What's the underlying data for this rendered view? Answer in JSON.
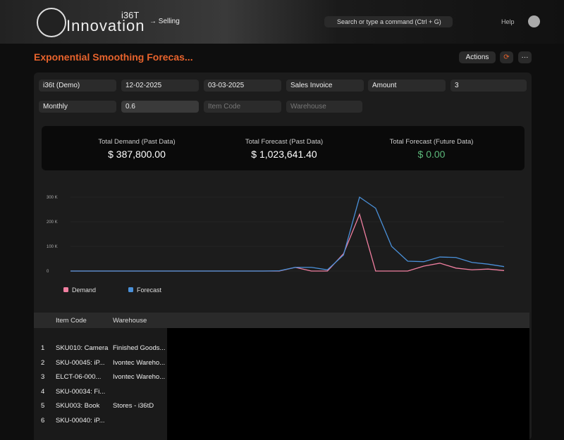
{
  "header": {
    "brand": "Innovation",
    "brand_mark": "i36T",
    "module": "Selling",
    "search": "Search or type a command (Ctrl + G)",
    "help": "Help"
  },
  "page": {
    "title": "Exponential Smoothing Forecas...",
    "actions": "Actions"
  },
  "filters": {
    "company": "i36t (Demo)",
    "from_date": "12-02-2025",
    "to_date": "03-03-2025",
    "document": "Sales Invoice",
    "based_on": "Amount",
    "periods": "3",
    "periodicity": "Monthly",
    "smoothing": "0.6",
    "item_code": "Item Code",
    "warehouse": "Warehouse"
  },
  "summary": [
    {
      "label": "Total Demand (Past Data)",
      "value": "$ 387,800.00"
    },
    {
      "label": "Total Forecast (Past Data)",
      "value": "$ 1,023,641.40"
    },
    {
      "label": "Total Forecast (Future Data)",
      "value": "$ 0.00"
    }
  ],
  "chart": {
    "type": "line",
    "categories": [
      null,
      null,
      null,
      null,
      null,
      null,
      null,
      null,
      null,
      null,
      null,
      null,
      null,
      null,
      null,
      null,
      null,
      null,
      null,
      null,
      null,
      null,
      null,
      null,
      null,
      null,
      null,
      null
    ],
    "series": [
      {
        "name": "Demand",
        "color": "#f07fa0",
        "values": [
          0,
          0,
          0,
          0,
          0,
          0,
          0,
          0,
          0,
          0,
          0,
          0,
          0,
          0,
          15000,
          0,
          0,
          70000,
          230000,
          0,
          0,
          0,
          20000,
          32000,
          12000,
          5000,
          8000,
          2000
        ]
      },
      {
        "name": "Forecast",
        "color": "#4a90d9",
        "values": [
          0,
          0,
          0,
          0,
          0,
          0,
          0,
          0,
          0,
          0,
          0,
          0,
          0,
          1000,
          15000,
          15000,
          5000,
          65000,
          300000,
          255000,
          100000,
          40000,
          38000,
          57000,
          55000,
          35000,
          28000,
          18000
        ]
      }
    ],
    "ylim": [
      0,
      300000
    ],
    "yticks": [
      0,
      {
        "value": 100000,
        "label": "100 K"
      },
      {
        "value": 200000,
        "label": "200 K"
      },
      {
        "value": 300000,
        "label": "300 K"
      }
    ],
    "grid": true
  },
  "table": {
    "columns": [
      "Item Code",
      "Warehouse"
    ],
    "rows": [
      [
        "1",
        "SKU010: Camera",
        "Finished Goods..."
      ],
      [
        "2",
        "SKU-00045: iP...",
        "Ivontec Wareho..."
      ],
      [
        "3",
        "ELCT-06-000...",
        "Ivontec Wareho..."
      ],
      [
        "4",
        "SKU-00034: Fi...",
        ""
      ],
      [
        "5",
        "SKU003: Book",
        "Stores - i36tD"
      ],
      [
        "6",
        "SKU-00040: iP...",
        ""
      ]
    ]
  }
}
